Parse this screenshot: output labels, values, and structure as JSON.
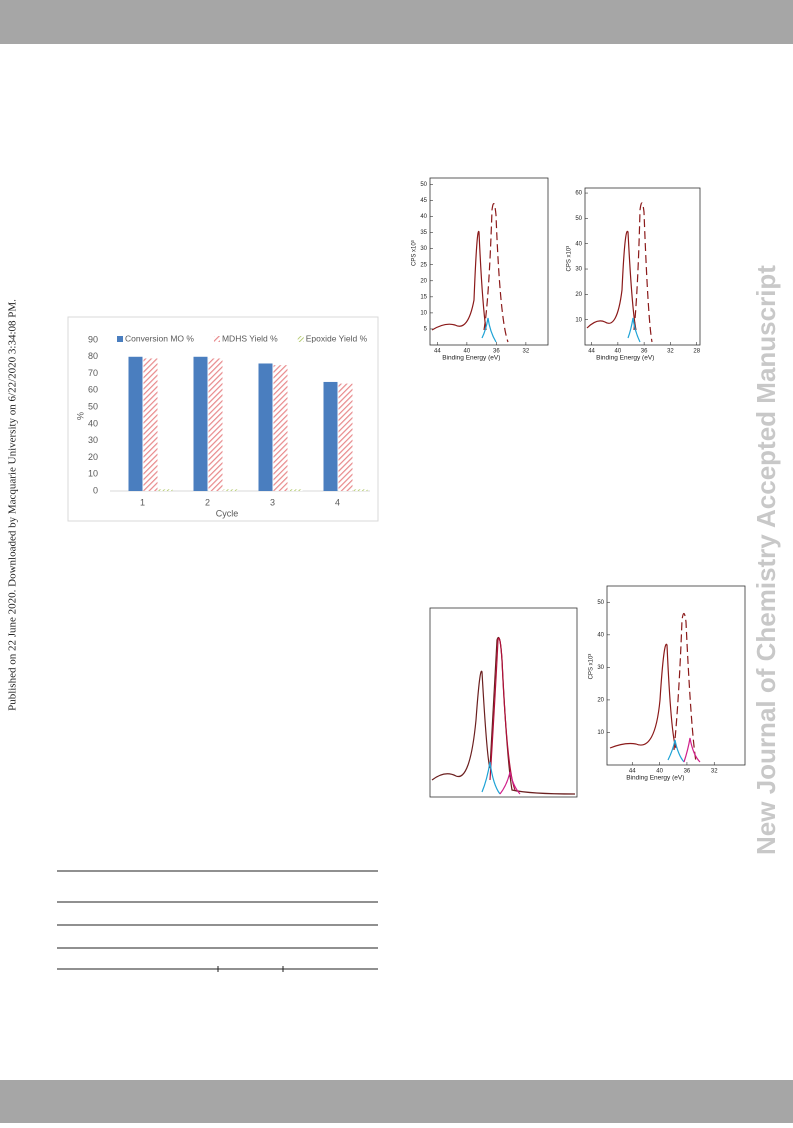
{
  "side_note": "Published on 22 June 2020. Downloaded by Macquarie University on 6/22/2020 3:34:08 PM.",
  "watermark": "New Journal of Chemistry Accepted Manuscript",
  "chart_data": {
    "type": "bar",
    "xlabel": "Cycle",
    "ylabel": "%",
    "categories": [
      "1",
      "2",
      "3",
      "4"
    ],
    "series": [
      {
        "name": "Conversion MO %",
        "color": "#4a7ebf",
        "values": [
          80,
          80,
          76,
          65
        ]
      },
      {
        "name": "MDHS Yield %",
        "color": "#e8898b",
        "hatch": true,
        "values": [
          79,
          79,
          75,
          64
        ]
      },
      {
        "name": "Epoxide Yield %",
        "color": "#a9c25a",
        "hatch": true,
        "values": [
          1,
          1,
          1,
          1
        ]
      }
    ],
    "ylim": [
      0,
      90
    ],
    "yticks": [
      0,
      10,
      20,
      30,
      40,
      50,
      60,
      70,
      80,
      90
    ],
    "legend": "top"
  },
  "spectra": [
    {
      "xlabel": "Binding Energy (eV)",
      "ylabel": "CPS x10³",
      "xlim": [
        45,
        29
      ],
      "ylim": [
        0,
        52
      ],
      "xticks": [
        44,
        40,
        36,
        32
      ],
      "yticks": [
        5,
        10,
        15,
        20,
        25,
        30,
        35,
        40,
        45,
        50
      ]
    },
    {
      "xlabel": "Binding Energy (eV)",
      "ylabel": "CPS x10³",
      "xlim": [
        45,
        27.5
      ],
      "ylim": [
        0,
        62
      ],
      "xticks": [
        44,
        40,
        36,
        32,
        28
      ],
      "yticks": [
        10,
        20,
        30,
        40,
        50,
        60
      ]
    },
    {
      "xlabel": "Binding Energy (eV)",
      "ylabel": "CPS x10³",
      "xlim": [
        47.7,
        27.5
      ],
      "ylim": [
        0,
        55
      ],
      "xticks": [
        44,
        40,
        36,
        32
      ],
      "yticks": [
        10,
        20,
        30,
        40,
        50
      ]
    }
  ]
}
